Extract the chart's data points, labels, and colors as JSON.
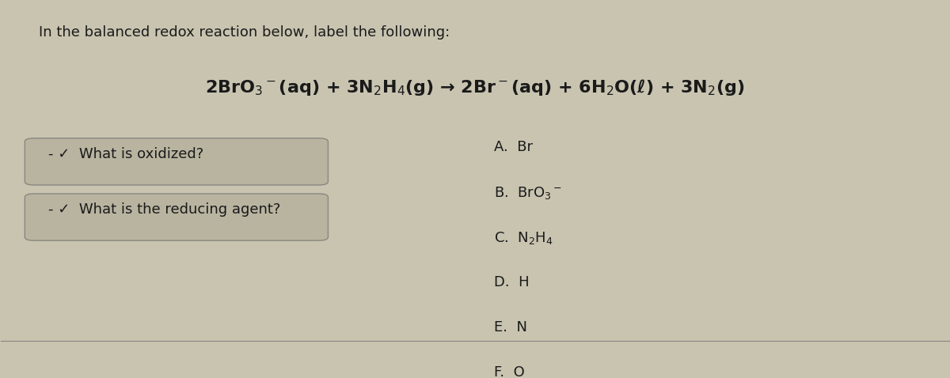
{
  "bg_color": "#c8c4b0",
  "title_line1": "In the balanced redox reaction below, label the following:",
  "title_line1_fontsize": 13,
  "equation": "2BrO$_3$$^-$(aq) + 3N$_2$H$_4$(g) → 2Br$^-$(aq) + 6H$_2$O(ℓ) + 3N$_2$(g)",
  "equation_fontsize": 16,
  "questions": [
    "- ✓  What is oxidized?",
    "- ✓  What is the reducing agent?"
  ],
  "question_fontsize": 13,
  "choices": [
    "A.  Br",
    "B.  BrO$_3$$^-$",
    "C.  N$_2$H$_4$",
    "D.  H",
    "E.  N",
    "F.  O"
  ],
  "choice_fontsize": 13,
  "text_color": "#1a1a1a",
  "box_color": "#b8b4a0",
  "box_edge_color": "#888880"
}
